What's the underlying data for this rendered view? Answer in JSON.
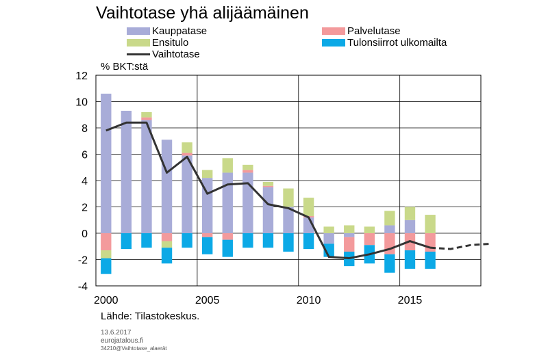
{
  "title": "Vaihtotase yhä alijäämäinen",
  "unit_label": "% BKT:stä",
  "source": "Lähde: Tilastokeskus.",
  "footer": {
    "date": "13.6.2017",
    "site": "eurojatalous.fi",
    "file_id": "34210@Vaihtotase_alaerät"
  },
  "legend": {
    "kauppatase": "Kauppatase",
    "palvelutase": "Palvelutase",
    "ensitulo": "Ensitulo",
    "tulonsiirrot": "Tulonsiirrot ulkomailta",
    "vaihtotase": "Vaihtotase"
  },
  "colors": {
    "kauppatase": "#a8acd8",
    "palvelutase": "#f39a9c",
    "ensitulo": "#c9d98a",
    "tulonsiirrot": "#0ca9e6",
    "vaihtotase": "#333333"
  },
  "chart_data": {
    "type": "bar",
    "stacked": true,
    "title": "Vaihtotase yhä alijäämäinen",
    "ylabel": "% BKT:stä",
    "ylim": [
      -4,
      12
    ],
    "yticks": [
      -4,
      -2,
      0,
      2,
      4,
      6,
      8,
      10,
      12
    ],
    "xlim": [
      2000,
      2019
    ],
    "xticks": [
      2000,
      2005,
      2010,
      2015
    ],
    "grid": true,
    "legend_position": "top",
    "years": [
      2000,
      2001,
      2002,
      2003,
      2004,
      2005,
      2006,
      2007,
      2008,
      2009,
      2010,
      2011,
      2012,
      2013,
      2014,
      2015,
      2016
    ],
    "series": [
      {
        "name": "Kauppatase",
        "key": "kauppatase",
        "values": [
          10.6,
          9.3,
          8.6,
          7.1,
          5.9,
          4.2,
          4.6,
          4.6,
          3.5,
          2.0,
          1.2,
          -0.8,
          -0.3,
          0.0,
          0.6,
          1.0,
          0.0
        ]
      },
      {
        "name": "Palvelutase",
        "key": "palvelutase",
        "values": [
          -1.3,
          0.0,
          0.2,
          -0.6,
          0.2,
          -0.3,
          -0.5,
          0.2,
          0.1,
          0.0,
          0.1,
          0.0,
          -1.1,
          -0.9,
          -1.6,
          -1.3,
          -1.4
        ]
      },
      {
        "name": "Ensitulo",
        "key": "ensitulo",
        "values": [
          -0.6,
          0.0,
          0.4,
          -0.5,
          0.8,
          0.6,
          1.1,
          0.4,
          0.3,
          1.4,
          1.4,
          0.5,
          0.6,
          0.5,
          1.1,
          1.0,
          1.4
        ]
      },
      {
        "name": "Tulonsiirrot ulkomailta",
        "key": "tulonsiirrot",
        "values": [
          -1.2,
          -1.2,
          -1.1,
          -1.2,
          -1.1,
          -1.3,
          -1.3,
          -1.1,
          -1.1,
          -1.4,
          -1.2,
          -1.0,
          -1.1,
          -1.4,
          -1.4,
          -1.4,
          -1.3
        ]
      }
    ],
    "line": {
      "name": "Vaihtotase",
      "key": "vaihtotase",
      "x": [
        2000,
        2001,
        2002,
        2003,
        2004,
        2005,
        2006,
        2007,
        2008,
        2009,
        2010,
        2011,
        2012,
        2013,
        2014,
        2015,
        2016
      ],
      "values": [
        7.8,
        8.4,
        8.4,
        4.6,
        5.8,
        3.0,
        3.7,
        3.8,
        2.2,
        1.9,
        1.2,
        -1.8,
        -1.9,
        -1.6,
        -1.2,
        -0.6,
        -1.1
      ]
    },
    "forecast": {
      "name": "Vaihtotase",
      "style": "dashed",
      "x": [
        2016,
        2017,
        2018,
        2019
      ],
      "values": [
        -1.1,
        -1.2,
        -0.9,
        -0.8
      ]
    }
  }
}
